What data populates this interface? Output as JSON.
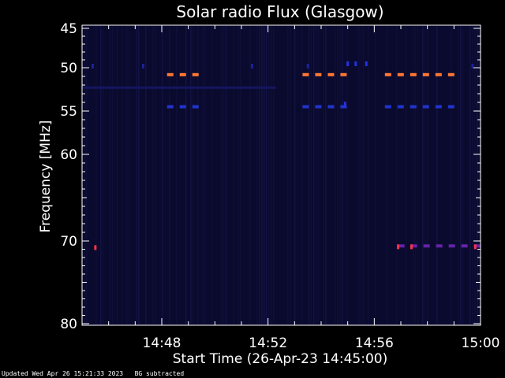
{
  "chart_data": {
    "type": "heatmap",
    "title": "Solar radio Flux (Glasgow)",
    "xlabel": "Start Time (26-Apr-23 14:45:00)",
    "ylabel": "Frequency [MHz]",
    "x_range_minutes": [
      0,
      15
    ],
    "x_ticks": [
      {
        "minute": 3,
        "label": "14:48"
      },
      {
        "minute": 7,
        "label": "14:52"
      },
      {
        "minute": 11,
        "label": "14:56"
      },
      {
        "minute": 15,
        "label": "15:00"
      }
    ],
    "y_range_mhz": [
      45,
      80
    ],
    "y_ticks": [
      {
        "mhz": 45,
        "label": "45"
      },
      {
        "mhz": 50,
        "label": "50"
      },
      {
        "mhz": 55,
        "label": "55"
      },
      {
        "mhz": 60,
        "label": "60"
      },
      {
        "mhz": 70,
        "label": "70"
      },
      {
        "mhz": 80,
        "label": "80"
      }
    ],
    "background_color": "#0a0a2e",
    "features": [
      {
        "type": "dashed-line",
        "freq_mhz": 50.8,
        "x_start_min": 3.2,
        "x_end_min": 4.5,
        "color": "#ff7733"
      },
      {
        "type": "dashed-line",
        "freq_mhz": 50.8,
        "x_start_min": 8.3,
        "x_end_min": 9.9,
        "color": "#ff7733"
      },
      {
        "type": "dashed-line",
        "freq_mhz": 50.8,
        "x_start_min": 11.4,
        "x_end_min": 14.0,
        "color": "#ff7733"
      },
      {
        "type": "dashed-line",
        "freq_mhz": 54.5,
        "x_start_min": 3.2,
        "x_end_min": 4.5,
        "color": "#2233cc"
      },
      {
        "type": "dashed-line",
        "freq_mhz": 54.5,
        "x_start_min": 8.3,
        "x_end_min": 10.2,
        "color": "#2233cc"
      },
      {
        "type": "dashed-line",
        "freq_mhz": 54.5,
        "x_start_min": 11.4,
        "x_end_min": 14.0,
        "color": "#2233cc"
      },
      {
        "type": "line",
        "freq_mhz": 52.3,
        "x_start_min": 0.0,
        "x_end_min": 7.3,
        "color": "#151560"
      },
      {
        "type": "dashed-line",
        "freq_mhz": 70.6,
        "x_start_min": 11.9,
        "x_end_min": 14.9,
        "color": "#6622aa"
      },
      {
        "type": "blip",
        "freq_mhz": 70.8,
        "minute": 0.5,
        "color": "#ff3344"
      },
      {
        "type": "blip",
        "freq_mhz": 70.7,
        "minute": 11.9,
        "color": "#ff3344"
      },
      {
        "type": "blip",
        "freq_mhz": 70.7,
        "minute": 12.4,
        "color": "#ff3344"
      },
      {
        "type": "blip",
        "freq_mhz": 70.7,
        "minute": 14.8,
        "color": "#ff3344"
      },
      {
        "type": "blip",
        "freq_mhz": 49.5,
        "minute": 10.0,
        "color": "#2233dd"
      },
      {
        "type": "blip",
        "freq_mhz": 49.5,
        "minute": 10.3,
        "color": "#2233dd"
      },
      {
        "type": "blip",
        "freq_mhz": 49.5,
        "minute": 10.7,
        "color": "#2233dd"
      },
      {
        "type": "blip",
        "freq_mhz": 49.8,
        "minute": 0.4,
        "color": "#1a2299"
      },
      {
        "type": "blip",
        "freq_mhz": 49.8,
        "minute": 2.3,
        "color": "#1a2299"
      },
      {
        "type": "blip",
        "freq_mhz": 49.8,
        "minute": 6.4,
        "color": "#1a2299"
      },
      {
        "type": "blip",
        "freq_mhz": 49.8,
        "minute": 8.5,
        "color": "#1a2299"
      },
      {
        "type": "blip",
        "freq_mhz": 49.8,
        "minute": 14.7,
        "color": "#1a2299"
      },
      {
        "type": "blip",
        "freq_mhz": 54.2,
        "minute": 9.9,
        "color": "#2233dd"
      }
    ]
  },
  "footer": {
    "updated": "Updated Wed Apr 26 15:21:33 2023",
    "bg_note": "BG subtracted"
  }
}
